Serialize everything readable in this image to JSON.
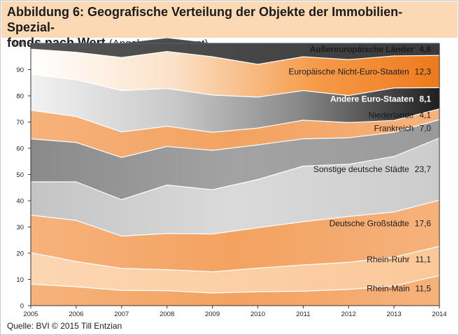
{
  "header": {
    "title": "Abbildung 6: Geografische Verteilung der Objekte der Immobilien-Spezial-",
    "title_line2": "fonds nach Wert",
    "subtitle": "(Angaben in Prozent)"
  },
  "source": "Quelle: BVI © 2015 Till Entzian",
  "colors": {
    "header_bg": "#fbd9b4",
    "orange": "#f5a86a",
    "light_orange": "#fbd0a8",
    "grey": "#8c8c8c",
    "light_grey": "#cfcfcf",
    "dark": "#3a3a3a"
  },
  "chart_data": {
    "type": "area",
    "stacked": true,
    "x": [
      "2005",
      "2006",
      "2007",
      "2008",
      "2009",
      "2010",
      "2011",
      "2012",
      "2013",
      "2014"
    ],
    "ylim": [
      0,
      100
    ],
    "yticks": [
      "0",
      "10",
      "20",
      "30",
      "40",
      "50",
      "60",
      "70",
      "80",
      "90",
      "100"
    ],
    "grid": false,
    "series": [
      {
        "name": "Rhein-Main",
        "value_label": "11,5",
        "values": [
          8.2,
          7.2,
          5.8,
          5.7,
          4.8,
          5.3,
          5.5,
          6.2,
          7.5,
          11.5
        ]
      },
      {
        "name": "Rhein-Ruhr",
        "value_label": "11,1",
        "values": [
          12.0,
          9.6,
          8.4,
          8.0,
          8.1,
          9.0,
          10.0,
          10.3,
          11.0,
          11.1
        ]
      },
      {
        "name": "Deutsche Großstädte",
        "value_label": "17,6",
        "values": [
          14.3,
          15.7,
          12.3,
          13.8,
          14.4,
          15.4,
          16.5,
          17.5,
          17.2,
          17.6
        ]
      },
      {
        "name": "Sonstige deutsche Städte",
        "value_label": "23,7",
        "values": [
          12.7,
          14.7,
          13.9,
          18.5,
          16.9,
          18.4,
          21.2,
          19.9,
          21.2,
          23.7
        ]
      },
      {
        "name": "Frankreich",
        "value_label": "7,0",
        "values": [
          16.4,
          15.0,
          16.1,
          14.7,
          15.0,
          13.2,
          10.4,
          10.1,
          9.2,
          7.0
        ]
      },
      {
        "name": "Niederlande",
        "value_label": "4,1",
        "values": [
          10.9,
          9.9,
          9.7,
          7.7,
          6.9,
          6.4,
          7.1,
          5.8,
          4.5,
          4.1
        ]
      },
      {
        "name": "Andere Euro-Staaten",
        "value_label": "8,1",
        "values": [
          13.7,
          14.0,
          15.8,
          14.4,
          14.2,
          11.8,
          11.3,
          10.3,
          12.4,
          8.1
        ]
      },
      {
        "name": "Europäische Nicht-Euro-Staaten",
        "value_label": "12,3",
        "values": [
          9.6,
          10.5,
          12.6,
          14.1,
          14.6,
          12.5,
          12.9,
          13.7,
          12.2,
          12.3
        ]
      },
      {
        "name": "Außereuropäische Länder",
        "value_label": "4,6",
        "values": [
          2.2,
          3.4,
          5.4,
          5.1,
          5.1,
          8.0,
          5.1,
          6.2,
          4.8,
          4.6
        ]
      }
    ]
  }
}
